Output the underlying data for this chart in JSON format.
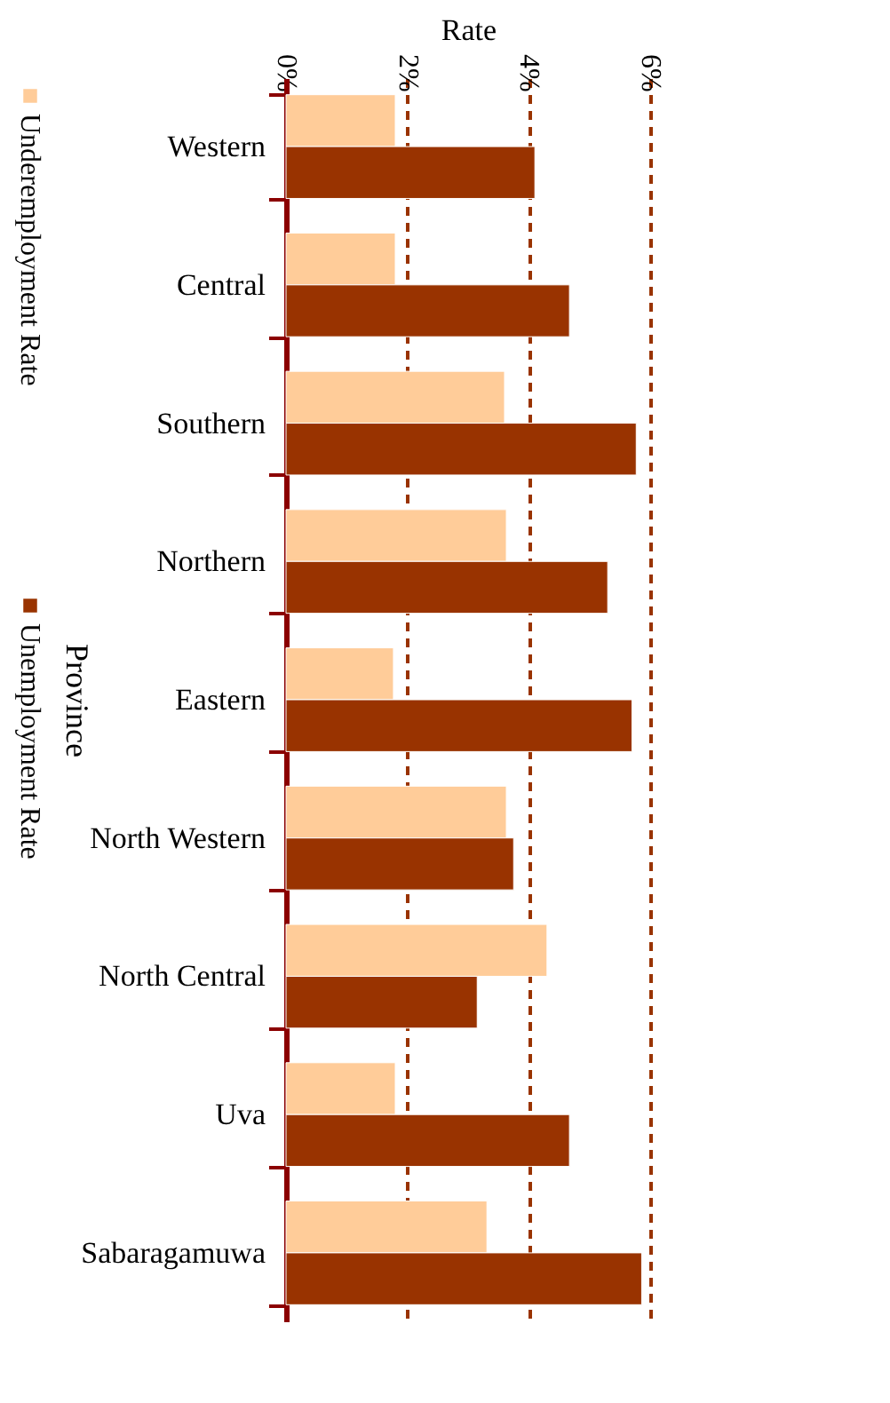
{
  "chart_data": {
    "type": "bar",
    "orientation": "horizontal",
    "xlabel": "Rate",
    "ylabel": "Province",
    "categories": [
      "Western",
      "Central",
      "Southern",
      "Northern",
      "Eastern",
      "North Western",
      "North Central",
      "Uva",
      "Sabaragamuwa"
    ],
    "series": [
      {
        "name": "Underemployment Rate",
        "color": "#ffcc99",
        "values": [
          1.8,
          1.8,
          3.6,
          3.63,
          1.77,
          3.63,
          4.3,
          1.8,
          3.31
        ]
      },
      {
        "name": "Unemployment Rate",
        "color": "#993300",
        "values": [
          4.1,
          4.67,
          5.77,
          5.3,
          5.7,
          3.75,
          3.15,
          4.67,
          5.86
        ]
      }
    ],
    "xlim": [
      0,
      6
    ],
    "xticks": [
      {
        "value": 0,
        "label": "0%"
      },
      {
        "value": 2,
        "label": "2%"
      },
      {
        "value": 4,
        "label": "4%"
      },
      {
        "value": 6,
        "label": "6%"
      }
    ],
    "grid": "x",
    "legend": "left"
  }
}
